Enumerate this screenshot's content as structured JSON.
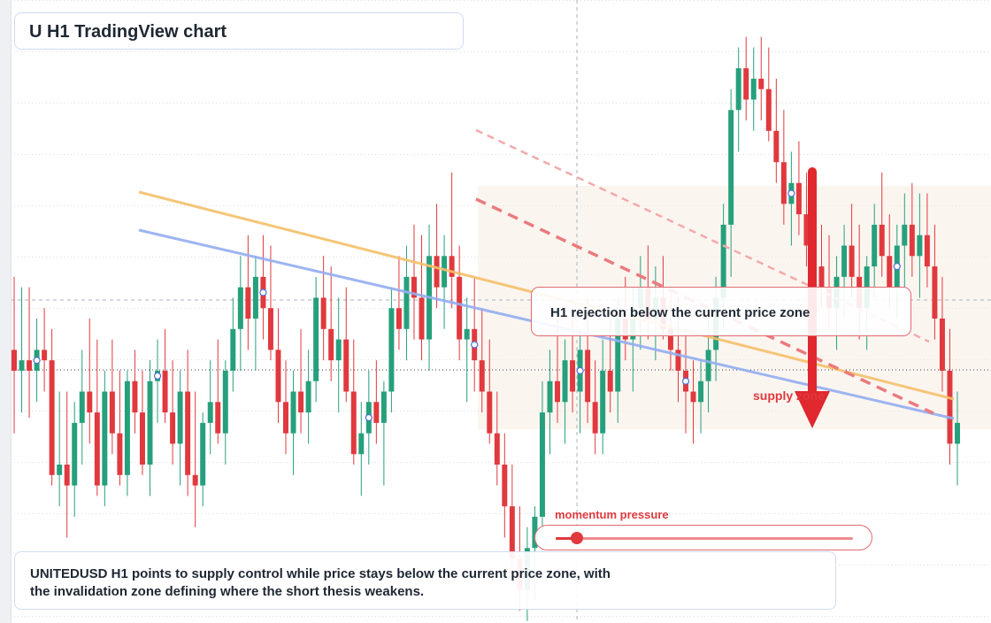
{
  "title": "U H1 TradingView chart",
  "callout": "H1 rejection below the current price zone",
  "supply_label": "supply zone",
  "momentum_label": "momentum pressure",
  "momentum_level": 0.07,
  "description": "UNITEDUSD H1 points to supply control while price stays below the current price zone, with the invalidation zone defining where the short thesis weakens.",
  "colors": {
    "bull": "#26a07c",
    "bear": "#e0393e",
    "ma_fast": "#f5c06a",
    "ma_slow": "#93aef0",
    "trend": "#ea7a7d",
    "grid": "#d9dde3"
  },
  "icons": {
    "arrow": "down-arrow-icon"
  },
  "chart_data": {
    "type": "candlestick",
    "series": [
      {
        "o": 0.38,
        "h": 0.52,
        "l": 0.22,
        "c": 0.34
      },
      {
        "o": 0.34,
        "h": 0.5,
        "l": 0.26,
        "c": 0.36
      },
      {
        "o": 0.36,
        "h": 0.5,
        "l": 0.25,
        "c": 0.34
      },
      {
        "o": 0.34,
        "h": 0.44,
        "l": 0.28,
        "c": 0.38
      },
      {
        "o": 0.38,
        "h": 0.46,
        "l": 0.3,
        "c": 0.36
      },
      {
        "o": 0.36,
        "h": 0.42,
        "l": 0.12,
        "c": 0.14
      },
      {
        "o": 0.14,
        "h": 0.3,
        "l": 0.08,
        "c": 0.16
      },
      {
        "o": 0.16,
        "h": 0.3,
        "l": 0.02,
        "c": 0.12
      },
      {
        "o": 0.12,
        "h": 0.28,
        "l": 0.06,
        "c": 0.24
      },
      {
        "o": 0.24,
        "h": 0.38,
        "l": 0.16,
        "c": 0.3
      },
      {
        "o": 0.3,
        "h": 0.44,
        "l": 0.2,
        "c": 0.26
      },
      {
        "o": 0.26,
        "h": 0.4,
        "l": 0.1,
        "c": 0.12
      },
      {
        "o": 0.12,
        "h": 0.34,
        "l": 0.08,
        "c": 0.3
      },
      {
        "o": 0.3,
        "h": 0.4,
        "l": 0.18,
        "c": 0.22
      },
      {
        "o": 0.22,
        "h": 0.34,
        "l": 0.12,
        "c": 0.14
      },
      {
        "o": 0.14,
        "h": 0.34,
        "l": 0.1,
        "c": 0.32
      },
      {
        "o": 0.32,
        "h": 0.38,
        "l": 0.22,
        "c": 0.26
      },
      {
        "o": 0.26,
        "h": 0.34,
        "l": 0.14,
        "c": 0.16
      },
      {
        "o": 0.16,
        "h": 0.36,
        "l": 0.1,
        "c": 0.32
      },
      {
        "o": 0.32,
        "h": 0.4,
        "l": 0.24,
        "c": 0.34
      },
      {
        "o": 0.34,
        "h": 0.42,
        "l": 0.24,
        "c": 0.26
      },
      {
        "o": 0.26,
        "h": 0.36,
        "l": 0.16,
        "c": 0.2
      },
      {
        "o": 0.2,
        "h": 0.34,
        "l": 0.12,
        "c": 0.3
      },
      {
        "o": 0.3,
        "h": 0.38,
        "l": 0.1,
        "c": 0.14
      },
      {
        "o": 0.14,
        "h": 0.3,
        "l": 0.04,
        "c": 0.12
      },
      {
        "o": 0.12,
        "h": 0.26,
        "l": 0.08,
        "c": 0.24
      },
      {
        "o": 0.24,
        "h": 0.36,
        "l": 0.18,
        "c": 0.28
      },
      {
        "o": 0.28,
        "h": 0.4,
        "l": 0.2,
        "c": 0.22
      },
      {
        "o": 0.22,
        "h": 0.36,
        "l": 0.16,
        "c": 0.34
      },
      {
        "o": 0.34,
        "h": 0.48,
        "l": 0.3,
        "c": 0.42
      },
      {
        "o": 0.42,
        "h": 0.56,
        "l": 0.34,
        "c": 0.5
      },
      {
        "o": 0.5,
        "h": 0.6,
        "l": 0.38,
        "c": 0.44
      },
      {
        "o": 0.44,
        "h": 0.56,
        "l": 0.34,
        "c": 0.52
      },
      {
        "o": 0.52,
        "h": 0.6,
        "l": 0.4,
        "c": 0.46
      },
      {
        "o": 0.46,
        "h": 0.58,
        "l": 0.36,
        "c": 0.38
      },
      {
        "o": 0.38,
        "h": 0.46,
        "l": 0.24,
        "c": 0.28
      },
      {
        "o": 0.28,
        "h": 0.36,
        "l": 0.18,
        "c": 0.22
      },
      {
        "o": 0.22,
        "h": 0.34,
        "l": 0.14,
        "c": 0.3
      },
      {
        "o": 0.3,
        "h": 0.42,
        "l": 0.22,
        "c": 0.26
      },
      {
        "o": 0.26,
        "h": 0.38,
        "l": 0.2,
        "c": 0.32
      },
      {
        "o": 0.32,
        "h": 0.52,
        "l": 0.28,
        "c": 0.48
      },
      {
        "o": 0.48,
        "h": 0.56,
        "l": 0.36,
        "c": 0.42
      },
      {
        "o": 0.42,
        "h": 0.54,
        "l": 0.32,
        "c": 0.36
      },
      {
        "o": 0.36,
        "h": 0.48,
        "l": 0.26,
        "c": 0.4
      },
      {
        "o": 0.4,
        "h": 0.5,
        "l": 0.28,
        "c": 0.3
      },
      {
        "o": 0.3,
        "h": 0.4,
        "l": 0.16,
        "c": 0.18
      },
      {
        "o": 0.18,
        "h": 0.28,
        "l": 0.1,
        "c": 0.22
      },
      {
        "o": 0.22,
        "h": 0.34,
        "l": 0.16,
        "c": 0.28
      },
      {
        "o": 0.28,
        "h": 0.36,
        "l": 0.2,
        "c": 0.24
      },
      {
        "o": 0.24,
        "h": 0.32,
        "l": 0.12,
        "c": 0.3
      },
      {
        "o": 0.3,
        "h": 0.5,
        "l": 0.26,
        "c": 0.46
      },
      {
        "o": 0.46,
        "h": 0.56,
        "l": 0.38,
        "c": 0.42
      },
      {
        "o": 0.42,
        "h": 0.58,
        "l": 0.36,
        "c": 0.52
      },
      {
        "o": 0.52,
        "h": 0.62,
        "l": 0.4,
        "c": 0.48
      },
      {
        "o": 0.48,
        "h": 0.6,
        "l": 0.36,
        "c": 0.4
      },
      {
        "o": 0.4,
        "h": 0.62,
        "l": 0.34,
        "c": 0.56
      },
      {
        "o": 0.56,
        "h": 0.66,
        "l": 0.46,
        "c": 0.5
      },
      {
        "o": 0.5,
        "h": 0.6,
        "l": 0.42,
        "c": 0.56
      },
      {
        "o": 0.56,
        "h": 0.72,
        "l": 0.46,
        "c": 0.52
      },
      {
        "o": 0.52,
        "h": 0.58,
        "l": 0.36,
        "c": 0.4
      },
      {
        "o": 0.4,
        "h": 0.48,
        "l": 0.28,
        "c": 0.42
      },
      {
        "o": 0.42,
        "h": 0.52,
        "l": 0.3,
        "c": 0.36
      },
      {
        "o": 0.36,
        "h": 0.46,
        "l": 0.26,
        "c": 0.3
      },
      {
        "o": 0.3,
        "h": 0.4,
        "l": 0.2,
        "c": 0.22
      },
      {
        "o": 0.22,
        "h": 0.3,
        "l": 0.12,
        "c": 0.16
      },
      {
        "o": 0.16,
        "h": 0.22,
        "l": 0.02,
        "c": 0.08
      },
      {
        "o": 0.08,
        "h": 0.16,
        "l": -0.06,
        "c": -0.02
      },
      {
        "o": -0.02,
        "h": 0.08,
        "l": -0.12,
        "c": -0.08
      },
      {
        "o": -0.08,
        "h": 0.04,
        "l": -0.14,
        "c": 0.0
      },
      {
        "o": 0.0,
        "h": 0.08,
        "l": -0.1,
        "c": 0.06
      },
      {
        "o": 0.06,
        "h": 0.32,
        "l": 0.02,
        "c": 0.26
      },
      {
        "o": 0.26,
        "h": 0.38,
        "l": 0.18,
        "c": 0.32
      },
      {
        "o": 0.32,
        "h": 0.44,
        "l": 0.24,
        "c": 0.28
      },
      {
        "o": 0.28,
        "h": 0.4,
        "l": 0.2,
        "c": 0.36
      },
      {
        "o": 0.36,
        "h": 0.46,
        "l": 0.26,
        "c": 0.3
      },
      {
        "o": 0.3,
        "h": 0.42,
        "l": 0.22,
        "c": 0.38
      },
      {
        "o": 0.38,
        "h": 0.48,
        "l": 0.24,
        "c": 0.28
      },
      {
        "o": 0.28,
        "h": 0.36,
        "l": 0.18,
        "c": 0.22
      },
      {
        "o": 0.22,
        "h": 0.4,
        "l": 0.18,
        "c": 0.34
      },
      {
        "o": 0.34,
        "h": 0.44,
        "l": 0.26,
        "c": 0.3
      },
      {
        "o": 0.3,
        "h": 0.48,
        "l": 0.24,
        "c": 0.44
      },
      {
        "o": 0.44,
        "h": 0.52,
        "l": 0.36,
        "c": 0.4
      },
      {
        "o": 0.4,
        "h": 0.5,
        "l": 0.3,
        "c": 0.46
      },
      {
        "o": 0.46,
        "h": 0.56,
        "l": 0.38,
        "c": 0.5
      },
      {
        "o": 0.5,
        "h": 0.58,
        "l": 0.4,
        "c": 0.44
      },
      {
        "o": 0.44,
        "h": 0.54,
        "l": 0.36,
        "c": 0.48
      },
      {
        "o": 0.48,
        "h": 0.56,
        "l": 0.4,
        "c": 0.42
      },
      {
        "o": 0.42,
        "h": 0.5,
        "l": 0.34,
        "c": 0.38
      },
      {
        "o": 0.38,
        "h": 0.48,
        "l": 0.28,
        "c": 0.34
      },
      {
        "o": 0.34,
        "h": 0.42,
        "l": 0.22,
        "c": 0.3
      },
      {
        "o": 0.3,
        "h": 0.36,
        "l": 0.2,
        "c": 0.28
      },
      {
        "o": 0.28,
        "h": 0.36,
        "l": 0.22,
        "c": 0.32
      },
      {
        "o": 0.32,
        "h": 0.44,
        "l": 0.26,
        "c": 0.38
      },
      {
        "o": 0.38,
        "h": 0.52,
        "l": 0.32,
        "c": 0.48
      },
      {
        "o": 0.48,
        "h": 0.66,
        "l": 0.42,
        "c": 0.62
      },
      {
        "o": 0.62,
        "h": 0.88,
        "l": 0.52,
        "c": 0.84
      },
      {
        "o": 0.84,
        "h": 0.96,
        "l": 0.76,
        "c": 0.92
      },
      {
        "o": 0.92,
        "h": 0.98,
        "l": 0.82,
        "c": 0.86
      },
      {
        "o": 0.86,
        "h": 0.96,
        "l": 0.8,
        "c": 0.9
      },
      {
        "o": 0.9,
        "h": 0.98,
        "l": 0.82,
        "c": 0.88
      },
      {
        "o": 0.88,
        "h": 0.96,
        "l": 0.78,
        "c": 0.8
      },
      {
        "o": 0.8,
        "h": 0.9,
        "l": 0.7,
        "c": 0.74
      },
      {
        "o": 0.74,
        "h": 0.84,
        "l": 0.62,
        "c": 0.66
      },
      {
        "o": 0.66,
        "h": 0.76,
        "l": 0.58,
        "c": 0.7
      },
      {
        "o": 0.7,
        "h": 0.78,
        "l": 0.6,
        "c": 0.64
      },
      {
        "o": 0.64,
        "h": 0.72,
        "l": 0.54,
        "c": 0.58
      },
      {
        "o": 0.58,
        "h": 0.68,
        "l": 0.5,
        "c": 0.54
      },
      {
        "o": 0.54,
        "h": 0.62,
        "l": 0.46,
        "c": 0.5
      },
      {
        "o": 0.5,
        "h": 0.6,
        "l": 0.42,
        "c": 0.46
      },
      {
        "o": 0.46,
        "h": 0.56,
        "l": 0.38,
        "c": 0.52
      },
      {
        "o": 0.52,
        "h": 0.62,
        "l": 0.44,
        "c": 0.58
      },
      {
        "o": 0.58,
        "h": 0.66,
        "l": 0.48,
        "c": 0.52
      },
      {
        "o": 0.52,
        "h": 0.62,
        "l": 0.4,
        "c": 0.46
      },
      {
        "o": 0.46,
        "h": 0.56,
        "l": 0.38,
        "c": 0.54
      },
      {
        "o": 0.54,
        "h": 0.66,
        "l": 0.48,
        "c": 0.62
      },
      {
        "o": 0.62,
        "h": 0.72,
        "l": 0.52,
        "c": 0.56
      },
      {
        "o": 0.56,
        "h": 0.64,
        "l": 0.46,
        "c": 0.5
      },
      {
        "o": 0.5,
        "h": 0.62,
        "l": 0.44,
        "c": 0.58
      },
      {
        "o": 0.58,
        "h": 0.68,
        "l": 0.5,
        "c": 0.62
      },
      {
        "o": 0.62,
        "h": 0.7,
        "l": 0.52,
        "c": 0.56
      },
      {
        "o": 0.56,
        "h": 0.68,
        "l": 0.48,
        "c": 0.6
      },
      {
        "o": 0.6,
        "h": 0.68,
        "l": 0.5,
        "c": 0.54
      },
      {
        "o": 0.54,
        "h": 0.62,
        "l": 0.4,
        "c": 0.44
      },
      {
        "o": 0.44,
        "h": 0.52,
        "l": 0.3,
        "c": 0.34
      },
      {
        "o": 0.34,
        "h": 0.42,
        "l": 0.16,
        "c": 0.2
      },
      {
        "o": 0.2,
        "h": 0.3,
        "l": 0.12,
        "c": 0.24
      }
    ]
  }
}
